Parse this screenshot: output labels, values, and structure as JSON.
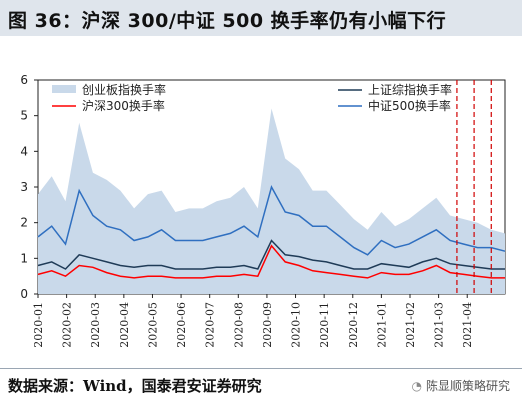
{
  "header": {
    "title": "图 36：沪深 300/中证 500 换手率仍有小幅下行"
  },
  "footer": {
    "source": "数据来源：Wind，国泰君安证券研究",
    "watermark": "陈显顺策略研究"
  },
  "colors": {
    "title_bg": "#dfe5ec",
    "chinext_fill": "#c9d9ea",
    "sse": "#1f3b57",
    "hs300": "#ff0000",
    "zz500": "#2f6fc0",
    "vline": "#d00000"
  },
  "chart_data": {
    "type": "area",
    "title": "",
    "xlabel": "",
    "ylabel": "",
    "ylim": [
      0,
      6
    ],
    "yticks": [
      0,
      1,
      2,
      3,
      4,
      5,
      6
    ],
    "xlim": [
      "2020-01",
      "2021-05"
    ],
    "xticks": [
      "2020-01",
      "2020-02",
      "2020-03",
      "2020-04",
      "2020-05",
      "2020-06",
      "2020-07",
      "2020-08",
      "2020-09",
      "2020-10",
      "2020-11",
      "2020-12",
      "2021-01",
      "2021-02",
      "2021-03",
      "2021-04"
    ],
    "legend": {
      "position": "top",
      "entries": [
        "创业板指换手率",
        "上证综指换手率",
        "沪深300换手率",
        "中证500换手率"
      ]
    },
    "vlines": [
      2021.22,
      2021.27,
      2021.32
    ],
    "x": [
      2020.0,
      2020.04,
      2020.08,
      2020.12,
      2020.16,
      2020.2,
      2020.24,
      2020.28,
      2020.32,
      2020.36,
      2020.4,
      2020.44,
      2020.48,
      2020.52,
      2020.56,
      2020.6,
      2020.64,
      2020.68,
      2020.72,
      2020.76,
      2020.8,
      2020.84,
      2020.88,
      2020.92,
      2020.96,
      2021.0,
      2021.04,
      2021.08,
      2021.12,
      2021.16,
      2021.2,
      2021.24,
      2021.28,
      2021.32,
      2021.36
    ],
    "series": [
      {
        "name": "创业板指换手率",
        "values": [
          2.8,
          3.3,
          2.6,
          4.8,
          3.4,
          3.2,
          2.9,
          2.4,
          2.8,
          2.9,
          2.3,
          2.4,
          2.4,
          2.6,
          2.7,
          3.0,
          2.4,
          5.2,
          3.8,
          3.5,
          2.9,
          2.9,
          2.5,
          2.1,
          1.8,
          2.3,
          1.9,
          2.1,
          2.4,
          2.7,
          2.2,
          2.1,
          2.0,
          1.8,
          1.7
        ]
      },
      {
        "name": "上证综指换手率",
        "values": [
          0.8,
          0.9,
          0.7,
          1.1,
          1.0,
          0.9,
          0.8,
          0.75,
          0.8,
          0.8,
          0.7,
          0.7,
          0.7,
          0.75,
          0.75,
          0.8,
          0.7,
          1.5,
          1.1,
          1.05,
          0.95,
          0.9,
          0.8,
          0.7,
          0.7,
          0.85,
          0.8,
          0.75,
          0.9,
          1.0,
          0.85,
          0.8,
          0.75,
          0.7,
          0.7
        ]
      },
      {
        "name": "沪深300换手率",
        "values": [
          0.55,
          0.65,
          0.5,
          0.8,
          0.75,
          0.6,
          0.5,
          0.45,
          0.5,
          0.5,
          0.45,
          0.45,
          0.45,
          0.5,
          0.5,
          0.55,
          0.5,
          1.35,
          0.9,
          0.8,
          0.65,
          0.6,
          0.55,
          0.5,
          0.45,
          0.6,
          0.55,
          0.55,
          0.65,
          0.8,
          0.6,
          0.55,
          0.5,
          0.45,
          0.45
        ]
      },
      {
        "name": "中证500换手率",
        "values": [
          1.6,
          1.9,
          1.4,
          2.9,
          2.2,
          1.9,
          1.8,
          1.5,
          1.6,
          1.8,
          1.5,
          1.5,
          1.5,
          1.6,
          1.7,
          1.9,
          1.6,
          3.0,
          2.3,
          2.2,
          1.9,
          1.9,
          1.6,
          1.3,
          1.1,
          1.5,
          1.3,
          1.4,
          1.6,
          1.8,
          1.5,
          1.4,
          1.3,
          1.3,
          1.2
        ]
      }
    ]
  }
}
